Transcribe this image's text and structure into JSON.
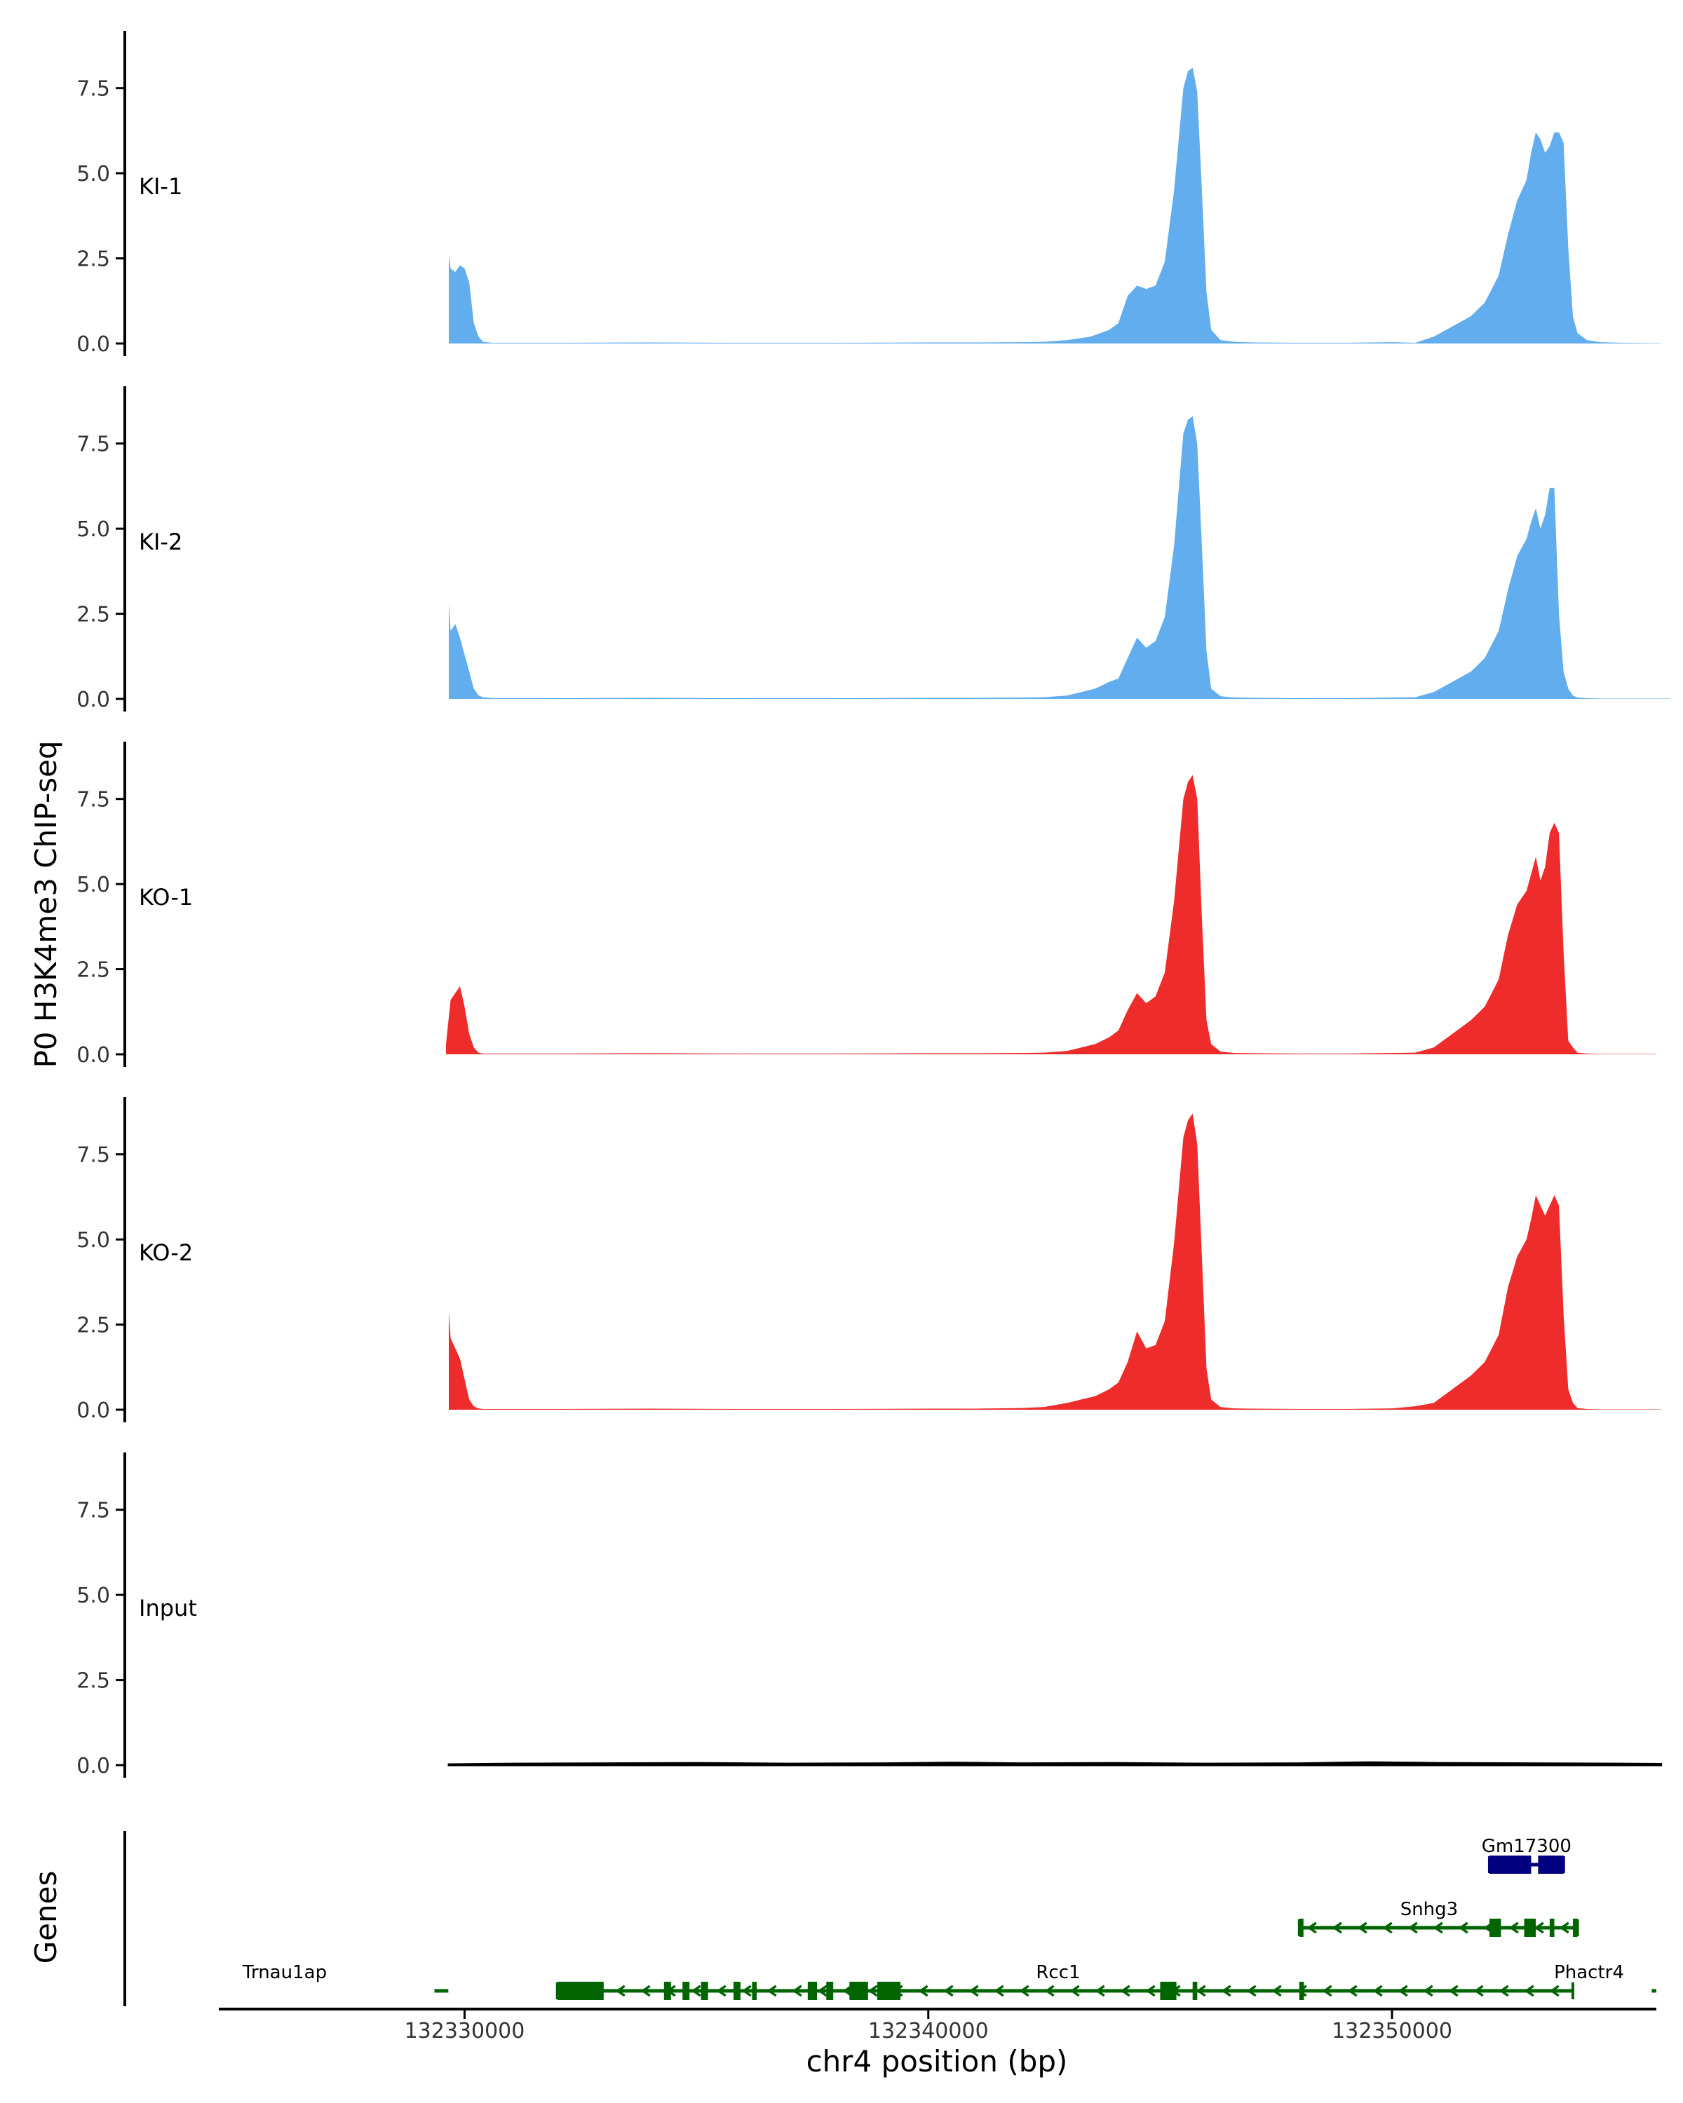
{
  "chart_data": {
    "type": "area",
    "ylabel": "P0 H3K4me3 ChIP-seq",
    "xlabel": "chr4 position (bp)",
    "genes_label": "Genes",
    "x_range": [
      132324700,
      132355700
    ],
    "ylim": [
      0,
      9.1
    ],
    "y_ticks": [
      "0.0",
      "2.5",
      "5.0",
      "7.5"
    ],
    "x_ticks": [
      "132330000",
      "132340000",
      "132350000"
    ],
    "colors": {
      "KI": "#61ADEE",
      "KO": "#EE2C2C",
      "input": "#000000",
      "gene_green": "#006400",
      "gene_navy": "#000080"
    },
    "tracks": [
      {
        "name": "KI-1",
        "color": "#61ADEE",
        "x": [
          132329660,
          132329700,
          132329800,
          132329900,
          132330000,
          132330100,
          132330200,
          132330300,
          132330400,
          132330600,
          132331000,
          132332000,
          132334000,
          132336000,
          132338000,
          132340000,
          132341000,
          132342000,
          132342500,
          132343000,
          132343500,
          132343900,
          132344100,
          132344300,
          132344500,
          132344700,
          132344900,
          132345100,
          132345300,
          132345500,
          132345600,
          132345700,
          132345800,
          132345900,
          132346000,
          132346100,
          132346300,
          132346600,
          132347000,
          132348000,
          132349000,
          132350000,
          132350500,
          132350900,
          132351300,
          132351700,
          132352000,
          132352300,
          132352500,
          132352700,
          132352900,
          132353000,
          132353100,
          132353200,
          132353300,
          132353400,
          132353500,
          132353600,
          132353700,
          132353800,
          132353900,
          132354000,
          132354200,
          132354500,
          132355000,
          132355800
        ],
        "y": [
          2.6,
          2.2,
          2.1,
          2.3,
          2.2,
          1.8,
          0.6,
          0.2,
          0.05,
          0.02,
          0.02,
          0.02,
          0.03,
          0.02,
          0.02,
          0.03,
          0.03,
          0.04,
          0.05,
          0.1,
          0.2,
          0.4,
          0.6,
          1.4,
          1.7,
          1.6,
          1.7,
          2.4,
          4.5,
          7.5,
          8.0,
          8.1,
          7.4,
          4.5,
          1.5,
          0.4,
          0.1,
          0.05,
          0.03,
          0.02,
          0.02,
          0.04,
          0.02,
          0.2,
          0.5,
          0.8,
          1.2,
          2.0,
          3.2,
          4.2,
          4.8,
          5.6,
          6.2,
          6.0,
          5.6,
          5.8,
          6.2,
          6.2,
          5.9,
          2.8,
          0.8,
          0.3,
          0.1,
          0.04,
          0.02,
          0.01
        ]
      },
      {
        "name": "KI-2",
        "color": "#61ADEE",
        "x": [
          132329660,
          132329700,
          132329800,
          132329900,
          132330000,
          132330100,
          132330200,
          132330300,
          132330400,
          132330600,
          132331000,
          132332000,
          132334000,
          132336000,
          132338000,
          132340000,
          132341000,
          132342000,
          132342500,
          132343000,
          132343300,
          132343600,
          132343900,
          132344100,
          132344300,
          132344500,
          132344700,
          132344900,
          132345100,
          132345300,
          132345500,
          132345600,
          132345700,
          132345800,
          132345900,
          132346000,
          132346100,
          132346300,
          132346600,
          132347000,
          132348000,
          132349000,
          132350000,
          132350500,
          132350900,
          132351300,
          132351700,
          132352000,
          132352300,
          132352500,
          132352700,
          132352900,
          132353000,
          132353100,
          132353200,
          132353300,
          132353400,
          132353500,
          132353600,
          132353700,
          132353800,
          132353900,
          132354000,
          132354200,
          132354500,
          132355000,
          132356000
        ],
        "y": [
          2.8,
          2.0,
          2.2,
          1.8,
          1.3,
          0.8,
          0.3,
          0.1,
          0.05,
          0.02,
          0.02,
          0.02,
          0.03,
          0.02,
          0.02,
          0.03,
          0.03,
          0.04,
          0.05,
          0.1,
          0.2,
          0.3,
          0.5,
          0.6,
          1.2,
          1.8,
          1.5,
          1.7,
          2.4,
          4.5,
          7.8,
          8.2,
          8.3,
          7.5,
          4.5,
          1.4,
          0.3,
          0.08,
          0.04,
          0.03,
          0.02,
          0.02,
          0.04,
          0.05,
          0.2,
          0.5,
          0.8,
          1.2,
          2.0,
          3.2,
          4.2,
          4.7,
          5.2,
          5.6,
          5.0,
          5.4,
          6.2,
          6.2,
          2.5,
          0.8,
          0.3,
          0.1,
          0.04,
          0.02,
          0.01,
          0.01,
          0.01
        ]
      },
      {
        "name": "KO-1",
        "color": "#EE2C2C",
        "x": [
          132329600,
          132329700,
          132329800,
          132329900,
          132330000,
          132330100,
          132330200,
          132330300,
          132330400,
          132330600,
          132331000,
          132332000,
          132334000,
          132336000,
          132338000,
          132340000,
          132341000,
          132342000,
          132342500,
          132343000,
          132343300,
          132343600,
          132343900,
          132344100,
          132344300,
          132344500,
          132344700,
          132344900,
          132345100,
          132345300,
          132345500,
          132345600,
          132345700,
          132345800,
          132345900,
          132346000,
          132346100,
          132346300,
          132346600,
          132347000,
          132348000,
          132349000,
          132350000,
          132350500,
          132350900,
          132351300,
          132351700,
          132352000,
          132352300,
          132352500,
          132352700,
          132352900,
          132353000,
          132353100,
          132353200,
          132353300,
          132353400,
          132353500,
          132353600,
          132353700,
          132353800,
          132353900,
          132354000,
          132354200,
          132354500,
          132355000,
          132355700
        ],
        "y": [
          0.3,
          1.6,
          1.8,
          2.0,
          1.4,
          0.6,
          0.2,
          0.05,
          0.02,
          0.02,
          0.02,
          0.02,
          0.03,
          0.02,
          0.02,
          0.03,
          0.03,
          0.04,
          0.05,
          0.1,
          0.2,
          0.3,
          0.5,
          0.7,
          1.3,
          1.8,
          1.5,
          1.7,
          2.4,
          4.5,
          7.5,
          8.0,
          8.2,
          7.5,
          4.0,
          1.0,
          0.3,
          0.08,
          0.04,
          0.03,
          0.02,
          0.02,
          0.04,
          0.05,
          0.2,
          0.6,
          1.0,
          1.4,
          2.2,
          3.5,
          4.4,
          4.8,
          5.3,
          5.8,
          5.1,
          5.5,
          6.5,
          6.8,
          6.5,
          3.0,
          0.4,
          0.2,
          0.05,
          0.02,
          0.01,
          0.01,
          0.01
        ]
      },
      {
        "name": "KO-2",
        "color": "#EE2C2C",
        "x": [
          132329660,
          132329700,
          132329800,
          132329900,
          132330000,
          132330100,
          132330200,
          132330300,
          132330400,
          132330600,
          132331000,
          132332000,
          132334000,
          132336000,
          132338000,
          132340000,
          132341000,
          132342000,
          132342500,
          132343000,
          132343300,
          132343600,
          132343900,
          132344100,
          132344300,
          132344500,
          132344700,
          132344900,
          132345100,
          132345300,
          132345500,
          132345600,
          132345700,
          132345800,
          132345900,
          132346000,
          132346100,
          132346300,
          132346600,
          132347000,
          132348000,
          132349000,
          132350000,
          132350500,
          132350900,
          132351300,
          132351700,
          132352000,
          132352300,
          132352500,
          132352700,
          132352900,
          132353000,
          132353100,
          132353200,
          132353300,
          132353400,
          132353500,
          132353600,
          132353700,
          132353800,
          132353900,
          132354000,
          132354200,
          132354500,
          132355000,
          132355800
        ],
        "y": [
          2.9,
          2.1,
          1.8,
          1.5,
          0.9,
          0.3,
          0.1,
          0.04,
          0.02,
          0.02,
          0.02,
          0.02,
          0.03,
          0.02,
          0.02,
          0.03,
          0.03,
          0.05,
          0.08,
          0.2,
          0.3,
          0.4,
          0.6,
          0.8,
          1.4,
          2.3,
          1.8,
          1.9,
          2.6,
          4.9,
          8.0,
          8.5,
          8.7,
          7.8,
          4.5,
          1.2,
          0.3,
          0.08,
          0.04,
          0.03,
          0.02,
          0.02,
          0.04,
          0.1,
          0.2,
          0.6,
          1.0,
          1.4,
          2.2,
          3.6,
          4.5,
          5.0,
          5.6,
          6.3,
          6.0,
          5.7,
          6.0,
          6.3,
          6.0,
          2.8,
          0.6,
          0.2,
          0.05,
          0.02,
          0.01,
          0.01,
          0.01
        ]
      },
      {
        "name": "Input",
        "color": "#000000",
        "x": [
          132329660,
          132331000,
          132333000,
          132335000,
          132337000,
          132339000,
          132340500,
          132342000,
          132344000,
          132346000,
          132348000,
          132349500,
          132351000,
          132353000,
          132355000,
          132355800
        ],
        "y": [
          0.02,
          0.04,
          0.05,
          0.06,
          0.04,
          0.05,
          0.07,
          0.05,
          0.06,
          0.04,
          0.05,
          0.08,
          0.06,
          0.05,
          0.04,
          0.03
        ]
      }
    ],
    "genes": [
      {
        "name": "Gm17300",
        "color": "#000080",
        "row": 2,
        "start": 132352100,
        "end": 132353700,
        "exons": [
          [
            132352100,
            132353000
          ],
          [
            132353150,
            132353700
          ]
        ]
      },
      {
        "name": "Snhg3",
        "color": "#006400",
        "row": 1,
        "start": 132348000,
        "end": 132354000,
        "exons": [
          [
            132348000,
            132348050
          ],
          [
            132352100,
            132352350
          ],
          [
            132352850,
            132353100
          ],
          [
            132353400,
            132353500
          ],
          [
            132353900,
            132354000
          ]
        ]
      },
      {
        "name": "Rcc1",
        "color": "#006400",
        "row": 0,
        "start": 132332000,
        "end": 132353900,
        "exons": [
          [
            132332000,
            132333000
          ],
          [
            132334300,
            132334450
          ],
          [
            132334700,
            132334850
          ],
          [
            132335100,
            132335250
          ],
          [
            132335800,
            132335950
          ],
          [
            132336200,
            132336300
          ],
          [
            132337400,
            132337600
          ],
          [
            132337800,
            132337950
          ],
          [
            132338300,
            132338700
          ],
          [
            132338900,
            132339400
          ],
          [
            132345000,
            132345350
          ],
          [
            132345700,
            132345800
          ],
          [
            132348000,
            132348100
          ]
        ]
      },
      {
        "name": "Trnau1ap",
        "color": "#006400",
        "row": 0,
        "start": 132329350,
        "end": 132329650,
        "exons": []
      },
      {
        "name": "Phactr4",
        "color": "#006400",
        "row": 0,
        "start": 132355600,
        "end": 132355700,
        "exons": []
      }
    ]
  }
}
